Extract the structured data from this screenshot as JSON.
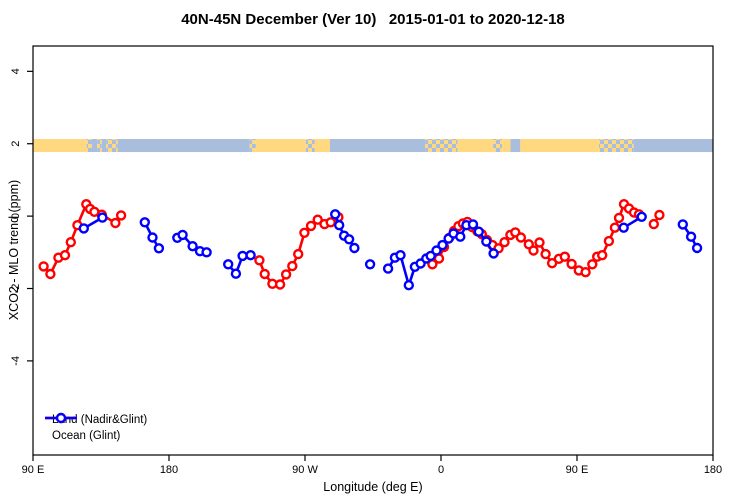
{
  "title": "40N-45N December (Ver 10)   2015-01-01 to 2020-12-18",
  "chart_data": {
    "type": "line",
    "title": "40N-45N December (Ver 10)   2015-01-01 to 2020-12-18",
    "xlabel": "Longitude (deg E)",
    "ylabel": "XCO2 - MLO trend (ppm)",
    "xlim": [
      90,
      540
    ],
    "ylim": [
      -6.6,
      4.7
    ],
    "grid": false,
    "x_ticks": [
      {
        "value": 90,
        "label": "90 E"
      },
      {
        "value": 180,
        "label": "180"
      },
      {
        "value": 270,
        "label": "90 W"
      },
      {
        "value": 360,
        "label": "0"
      },
      {
        "value": 450,
        "label": "90 E"
      },
      {
        "value": 540,
        "label": "180"
      }
    ],
    "y_ticks": [
      {
        "value": -4,
        "label": "-4"
      },
      {
        "value": -2,
        "label": "-2"
      },
      {
        "value": 0,
        "label": "0"
      },
      {
        "value": 2,
        "label": "2"
      },
      {
        "value": 4,
        "label": "4"
      }
    ],
    "legend": {
      "position": "bottom-left",
      "items": [
        {
          "label": "Land (Nadir&Glint)",
          "color": "#ff0000"
        },
        {
          "label": "Ocean (Glint)",
          "color": "#0000ff"
        }
      ]
    },
    "series": [
      {
        "name": "Land (Nadir&Glint)",
        "color": "#ff0000",
        "marker": "open-circle",
        "segments": [
          [
            [
              97,
              -1.39
            ],
            [
              101.5,
              -1.6
            ],
            [
              106.8,
              -1.15
            ],
            [
              111.2,
              -1.08
            ],
            [
              115,
              -0.72
            ],
            [
              119.4,
              -0.25
            ],
            [
              125.3,
              0.33
            ],
            [
              127.8,
              0.2
            ],
            [
              130.6,
              0.12
            ],
            [
              135.5,
              0.04
            ],
            [
              144.5,
              -0.19
            ],
            [
              148.3,
              0.02
            ]
          ],
          [
            [
              239.8,
              -1.22
            ],
            [
              243.3,
              -1.6
            ],
            [
              248.4,
              -1.87
            ],
            [
              253.5,
              -1.89
            ],
            [
              257.5,
              -1.61
            ],
            [
              261.6,
              -1.38
            ],
            [
              265.5,
              -1.05
            ],
            [
              269.6,
              -0.46
            ],
            [
              274,
              -0.27
            ],
            [
              278.4,
              -0.1
            ],
            [
              282.9,
              -0.22
            ],
            [
              287,
              -0.17
            ],
            [
              292.1,
              -0.03
            ]
          ],
          [
            [
              354.3,
              -1.33
            ],
            [
              358.7,
              -1.17
            ],
            [
              362,
              -0.85
            ],
            [
              365.5,
              -0.6
            ],
            [
              368.6,
              -0.41
            ],
            [
              371.5,
              -0.28
            ],
            [
              374.5,
              -0.2
            ],
            [
              377.5,
              -0.16
            ],
            [
              380.5,
              -0.3
            ],
            [
              384,
              -0.42
            ],
            [
              387,
              -0.5
            ],
            [
              390.4,
              -0.66
            ],
            [
              394,
              -0.8
            ],
            [
              398.1,
              -0.89
            ],
            [
              402,
              -0.72
            ],
            [
              405.9,
              -0.52
            ],
            [
              409.2,
              -0.45
            ],
            [
              412.9,
              -0.59
            ],
            [
              418.1,
              -0.78
            ],
            [
              421.2,
              -0.95
            ],
            [
              425.2,
              -0.73
            ],
            [
              429.2,
              -1.05
            ],
            [
              433.5,
              -1.3
            ],
            [
              438,
              -1.18
            ],
            [
              441.9,
              -1.12
            ],
            [
              446.4,
              -1.32
            ],
            [
              451.2,
              -1.5
            ],
            [
              455.7,
              -1.55
            ],
            [
              460.1,
              -1.33
            ],
            [
              463.4,
              -1.12
            ],
            [
              466.7,
              -1.08
            ],
            [
              471.1,
              -0.69
            ],
            [
              475.1,
              -0.32
            ],
            [
              477.8,
              -0.05
            ],
            [
              481.1,
              0.33
            ],
            [
              484.4,
              0.21
            ],
            [
              487.7,
              0.1
            ],
            [
              491,
              0.05
            ]
          ],
          [
            [
              500.8,
              -0.22
            ],
            [
              504.5,
              0.03
            ]
          ]
        ]
      },
      {
        "name": "Ocean (Glint)",
        "color": "#0000ff",
        "marker": "open-circle",
        "segments": [
          [
            [
              123.6,
              -0.34
            ],
            [
              135.9,
              -0.04
            ]
          ],
          [
            [
              164,
              -0.17
            ],
            [
              169.1,
              -0.59
            ],
            [
              173.3,
              -0.89
            ]
          ],
          [
            [
              185.5,
              -0.6
            ],
            [
              189,
              -0.52
            ],
            [
              195.6,
              -0.83
            ],
            [
              200.5,
              -0.97
            ],
            [
              204.9,
              -1.0
            ]
          ],
          [
            [
              219.2,
              -1.33
            ],
            [
              224.3,
              -1.59
            ],
            [
              228.7,
              -1.1
            ],
            [
              234,
              -1.08
            ]
          ],
          [
            [
              290,
              0.05
            ],
            [
              292.6,
              -0.25
            ],
            [
              295.9,
              -0.54
            ],
            [
              299.2,
              -0.64
            ],
            [
              302.7,
              -0.88
            ]
          ],
          [
            [
              313.1,
              -1.33
            ]
          ],
          [
            [
              325,
              -1.45
            ],
            [
              329.5,
              -1.15
            ],
            [
              333.2,
              -1.08
            ],
            [
              338.7,
              -1.91
            ],
            [
              342.7,
              -1.4
            ],
            [
              346.5,
              -1.31
            ],
            [
              350.3,
              -1.17
            ],
            [
              353.2,
              -1.1
            ],
            [
              357,
              -0.95
            ],
            [
              361,
              -0.8
            ],
            [
              365,
              -0.62
            ],
            [
              368.3,
              -0.48
            ],
            [
              372.8,
              -0.57
            ],
            [
              376.8,
              -0.25
            ],
            [
              381.2,
              -0.23
            ],
            [
              385,
              -0.43
            ],
            [
              390,
              -0.7
            ],
            [
              394.8,
              -1.03
            ]
          ],
          [
            [
              480.9,
              -0.32
            ],
            [
              492.8,
              -0.02
            ]
          ],
          [
            [
              520,
              -0.23
            ],
            [
              525.5,
              -0.57
            ],
            [
              529.5,
              -0.88
            ]
          ]
        ]
      }
    ],
    "map_band": {
      "description": "land/ocean strip map along 40N-45N",
      "land_color": "#ffd880",
      "ocean_color": "#a8bedc",
      "y_top_ppm": 2.13,
      "y_bottom_ppm": 1.77,
      "segments": [
        {
          "from": 90,
          "to": 125.5,
          "type": "land"
        },
        {
          "from": 125.5,
          "to": 129,
          "type": "mixed"
        },
        {
          "from": 129,
          "to": 132.5,
          "type": "ocean"
        },
        {
          "from": 132.5,
          "to": 135.5,
          "type": "mixed"
        },
        {
          "from": 135.5,
          "to": 138.5,
          "type": "ocean"
        },
        {
          "from": 138.5,
          "to": 146,
          "type": "mixed"
        },
        {
          "from": 146,
          "to": 233.5,
          "type": "ocean"
        },
        {
          "from": 233.5,
          "to": 237.5,
          "type": "mixed"
        },
        {
          "from": 237.5,
          "to": 270.5,
          "type": "land"
        },
        {
          "from": 270.5,
          "to": 276.5,
          "type": "mixed"
        },
        {
          "from": 276.5,
          "to": 286.5,
          "type": "land"
        },
        {
          "from": 286.5,
          "to": 349.5,
          "type": "ocean"
        },
        {
          "from": 349.5,
          "to": 371,
          "type": "mixed"
        },
        {
          "from": 371,
          "to": 394.5,
          "type": "land"
        },
        {
          "from": 394.5,
          "to": 400.5,
          "type": "mixed"
        },
        {
          "from": 400.5,
          "to": 406,
          "type": "land"
        },
        {
          "from": 406,
          "to": 412.5,
          "type": "ocean"
        },
        {
          "from": 412.5,
          "to": 464.5,
          "type": "land"
        },
        {
          "from": 464.5,
          "to": 487.5,
          "type": "mixed"
        },
        {
          "from": 487.5,
          "to": 540,
          "type": "ocean"
        }
      ]
    }
  }
}
